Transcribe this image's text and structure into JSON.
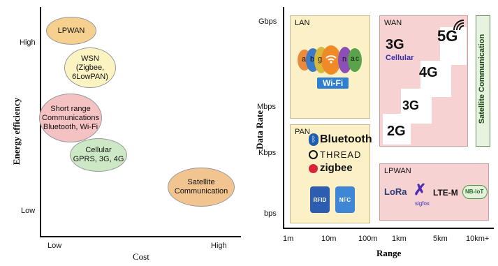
{
  "left": {
    "y_axis_label": "Energy efficiency",
    "x_axis_label": "Cost",
    "y_ticks": {
      "high": "High",
      "low": "Low"
    },
    "x_ticks": {
      "low": "Low",
      "high": "High"
    },
    "ellipses": [
      {
        "id": "lpwan",
        "text": "LPWAN",
        "color": "#f6d08e"
      },
      {
        "id": "wsn",
        "text": "WSN\n(Zigbee,\n6LowPAN)",
        "color": "#fbf3c2"
      },
      {
        "id": "short",
        "text": "Short range\nCommunications\nBluetooth, Wi-Fi",
        "color": "#f4c2c2"
      },
      {
        "id": "cellular",
        "text": "Cellular\nGPRS, 3G, 4G",
        "color": "#cde8c4"
      },
      {
        "id": "satellite",
        "text": "Satellite\nCommunication",
        "color": "#f2c48f"
      }
    ]
  },
  "right": {
    "y_axis_label": "Data Rate",
    "x_axis_label": "Range",
    "y_ticks": [
      "Gbps",
      "Mbps",
      "Kbps",
      "bps"
    ],
    "x_ticks": [
      "1m",
      "10m",
      "100m",
      "1km",
      "5km",
      "10km+"
    ],
    "lan": {
      "title": "LAN",
      "wifi_label": "Wi-Fi",
      "wifi_letters": [
        "a",
        "b",
        "g",
        "n",
        "a",
        "c"
      ],
      "color": "#fbf0c6"
    },
    "pan": {
      "title": "PAN",
      "items": [
        "Bluetooth",
        "THREAD",
        "zigbee"
      ],
      "rfid": "RFID",
      "nfc": "NFC",
      "color": "#fbf0c6"
    },
    "wan": {
      "title": "WAN",
      "gens": [
        "3G",
        "5G",
        "4G",
        "3G",
        "2G"
      ],
      "cellular_label": "Cellular",
      "color": "#f7d2d2"
    },
    "satellite": {
      "label": "Satellite Communication",
      "color": "#e6f3e0"
    },
    "lpwan": {
      "title": "LPWAN",
      "items": [
        "LoRa",
        "sigfox",
        "LTE-M",
        "NB-IoT"
      ],
      "color": "#f7d2d2"
    }
  }
}
